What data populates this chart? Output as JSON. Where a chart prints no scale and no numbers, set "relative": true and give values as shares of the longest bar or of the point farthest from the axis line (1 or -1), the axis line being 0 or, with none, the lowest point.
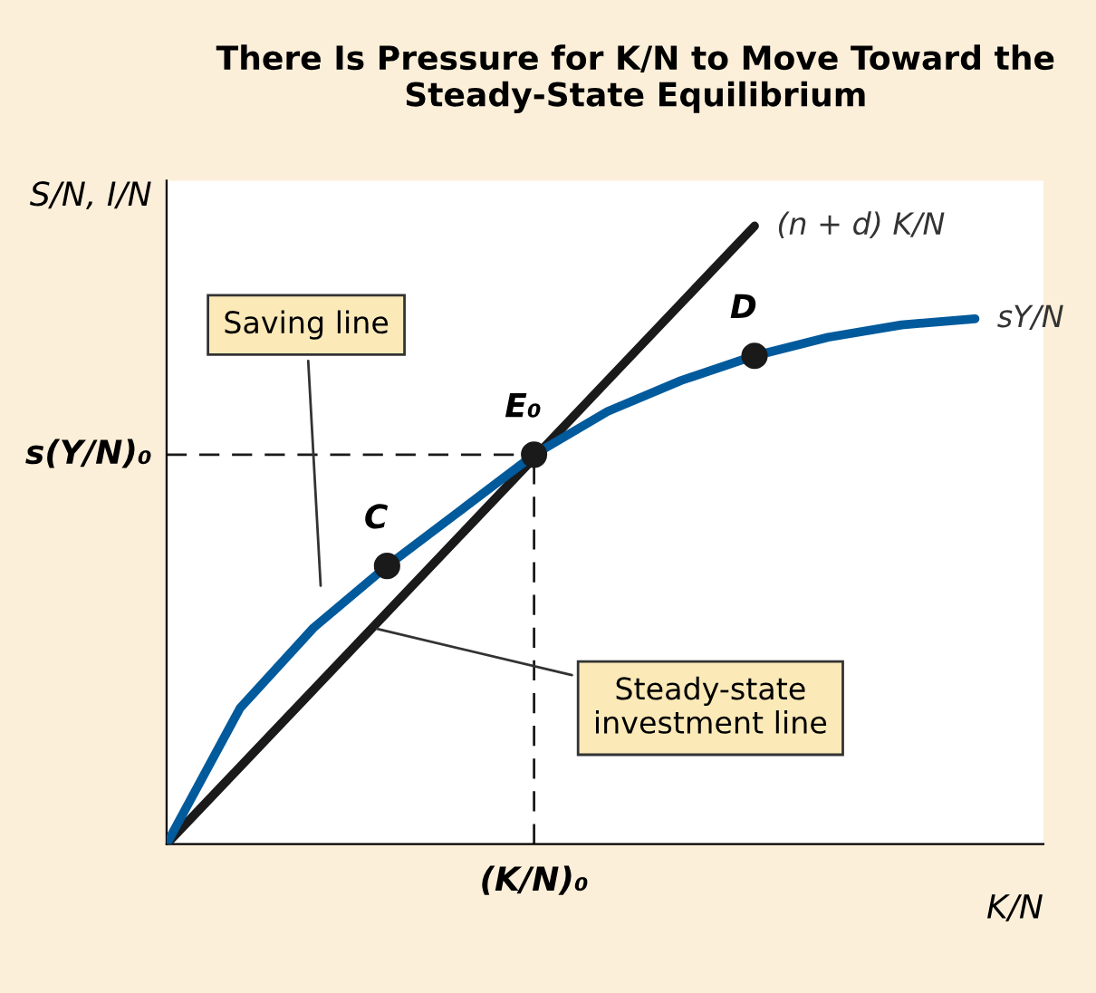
{
  "chart_data": {
    "type": "line",
    "relative": true,
    "title": "There Is Pressure for K/N to Move Toward the Steady-State Equilibrium",
    "xlabel": "K/N",
    "ylabel": "S/N, I/N",
    "categories": [
      null,
      null,
      null,
      null,
      null,
      null,
      null,
      null,
      null,
      null,
      null,
      null
    ],
    "series": [
      {
        "name": "(n + d) K/N",
        "color": "#1a1a1a",
        "values": [
          0,
          0.125,
          0.25,
          0.375,
          0.5,
          0.625,
          0.75,
          0.875,
          1.0,
          null,
          null,
          null
        ]
      },
      {
        "name": "sY/N",
        "color": "#005a9c",
        "values": [
          0,
          0.22,
          0.35,
          0.45,
          0.54,
          0.63,
          0.7,
          0.75,
          0.79,
          0.82,
          0.84,
          0.85
        ]
      }
    ],
    "ref_lines": [
      {
        "axis": "y",
        "value": 0.63,
        "label": "s(Y/N)₀",
        "line_style": "dashed"
      }
    ],
    "annotations": [
      "Saving line",
      "Steady-state investment line",
      "(K/N)₀",
      {
        "text": "C",
        "y": 0.45
      },
      {
        "text": "E₀",
        "y": 0.63
      },
      {
        "text": "D",
        "y": 0.79
      }
    ],
    "marker": "none",
    "line_style": "solid"
  }
}
